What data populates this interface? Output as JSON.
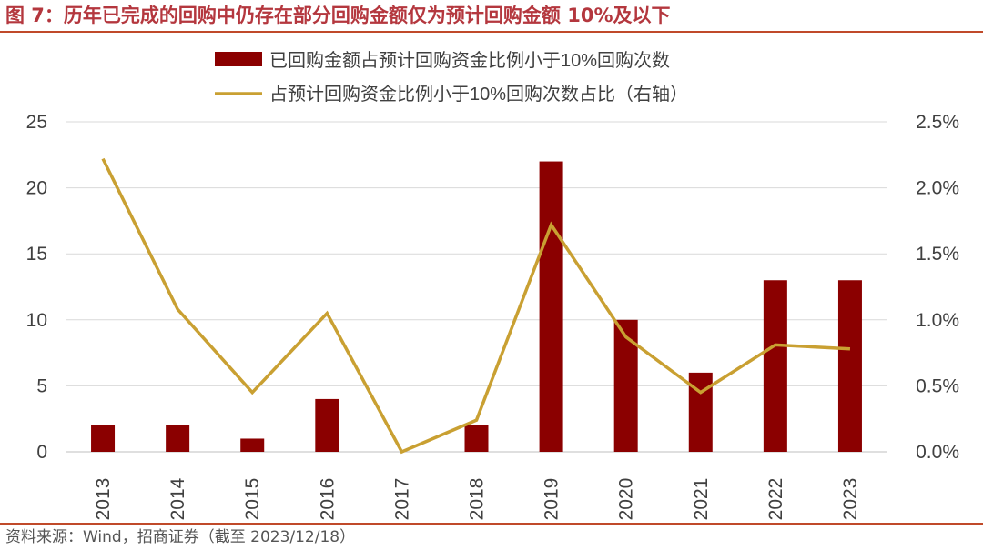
{
  "figure": {
    "title": "图 7：历年已完成的回购中仍存在部分回购金额仅为预计回购金额 10%及以下",
    "source": "资料来源：Wind，招商证券（截至 2023/12/18）"
  },
  "colors": {
    "bar": "#8b0000",
    "line": "#c9a032",
    "title": "#b4373e",
    "rule": "#c04a2a",
    "grid": "#d9d9d9",
    "axis_text": "#404040"
  },
  "chart_data": {
    "type": "bar",
    "categories": [
      "2013",
      "2014",
      "2015",
      "2016",
      "2017",
      "2018",
      "2019",
      "2020",
      "2021",
      "2022",
      "2023"
    ],
    "series": [
      {
        "name": "已回购金额占预计回购资金比例小于10%回购次数",
        "type": "bar",
        "axis": "left",
        "values": [
          2,
          2,
          1,
          4,
          0,
          2,
          22,
          10,
          6,
          13,
          13
        ]
      },
      {
        "name": "占预计回购资金比例小于10%回购次数占比（右轴）",
        "type": "line",
        "axis": "right",
        "values": [
          2.22,
          1.08,
          0.45,
          1.05,
          0.0,
          0.24,
          1.72,
          0.87,
          0.45,
          0.81,
          0.78
        ]
      }
    ],
    "y_left": {
      "ylim": [
        0,
        25
      ],
      "ticks": [
        "0",
        "5",
        "10",
        "15",
        "20",
        "25"
      ]
    },
    "y_right": {
      "ylim": [
        0,
        2.5
      ],
      "unit": "%",
      "ticks": [
        "0.0%",
        "0.5%",
        "1.0%",
        "1.5%",
        "2.0%",
        "2.5%"
      ]
    },
    "grid": true,
    "legend_position": "top-center",
    "xlabel": "",
    "ylabel": ""
  }
}
